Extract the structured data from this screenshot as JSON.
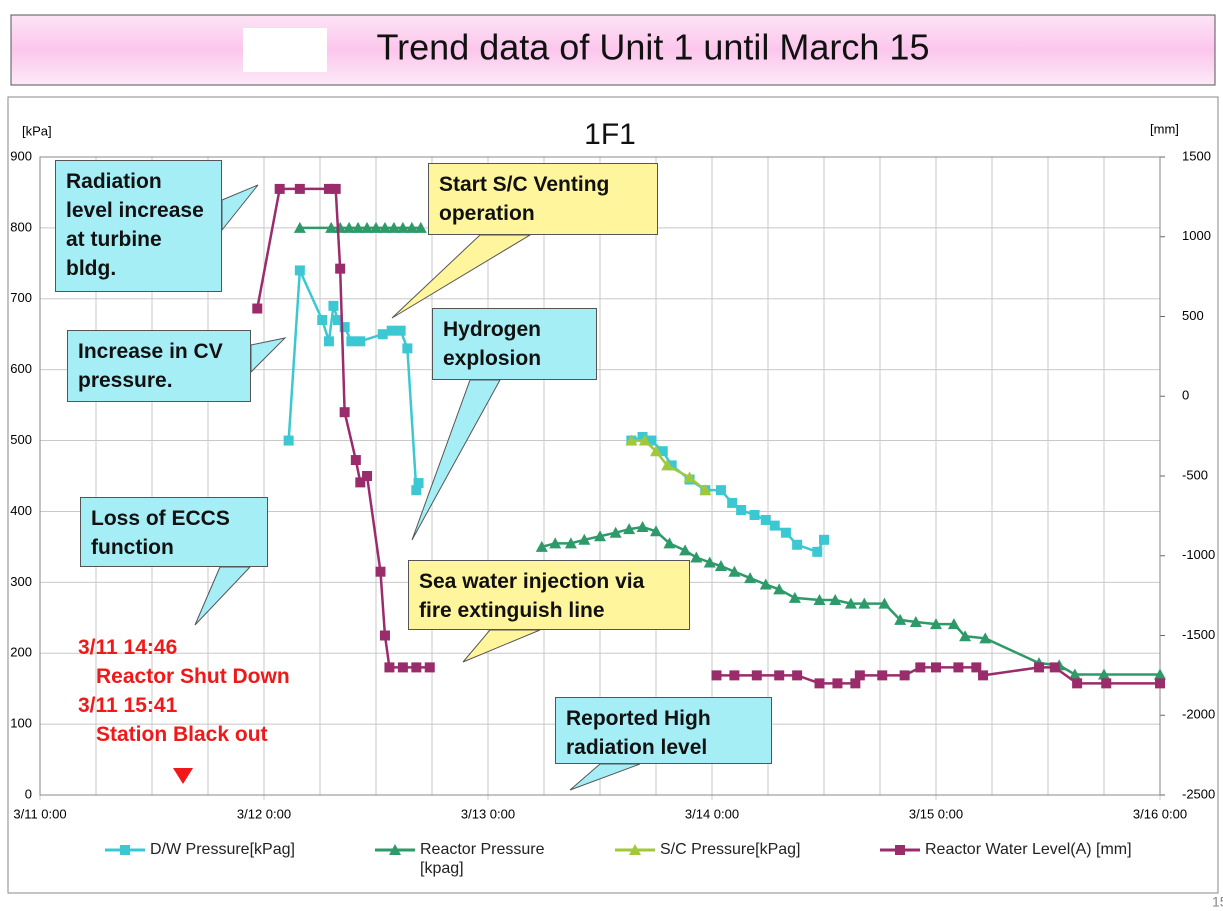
{
  "page_title": "Trend data of Unit 1 until March 15",
  "page_number": "15",
  "chart_data": {
    "type": "line",
    "title": "1F1",
    "y_label": "[kPa]",
    "y2_label": "[mm]",
    "xlim": [
      0,
      5
    ],
    "xticks": [
      {
        "value": 0,
        "label": "3/11 0:00"
      },
      {
        "value": 1,
        "label": "3/12 0:00"
      },
      {
        "value": 2,
        "label": "3/13 0:00"
      },
      {
        "value": 3,
        "label": "3/14 0:00"
      },
      {
        "value": 4,
        "label": "3/15 0:00"
      },
      {
        "value": 5,
        "label": "3/16 0:00"
      }
    ],
    "x_minor_ticks": [
      0.25,
      0.5,
      0.75,
      1.25,
      1.5,
      1.75,
      2.25,
      2.5,
      2.75,
      3.25,
      3.5,
      3.75,
      4.25,
      4.5,
      4.75
    ],
    "ylim": [
      0,
      900
    ],
    "yticks": [
      0,
      100,
      200,
      300,
      400,
      500,
      600,
      700,
      800,
      900
    ],
    "y2lim": [
      -2500,
      1500
    ],
    "y2ticks": [
      -2500,
      -2000,
      -1500,
      -1000,
      -500,
      0,
      500,
      1000,
      1500
    ],
    "grid": true,
    "legend": "bottom",
    "series": [
      {
        "name": "D/W Pressure[kPag]",
        "color": "#3cc8d2",
        "marker": "square",
        "x": [
          1.11,
          1.16,
          1.26,
          1.29,
          1.31,
          1.33,
          1.36,
          1.39,
          1.43,
          1.53,
          1.57,
          1.61,
          1.64,
          1.68,
          1.69,
          null,
          2.64,
          2.69,
          2.73,
          2.78,
          2.82,
          2.9,
          2.97,
          3.04,
          3.09,
          3.13,
          3.19,
          3.24,
          3.28,
          3.33,
          3.38,
          3.47,
          3.5
        ],
        "values": [
          500,
          740,
          670,
          640,
          690,
          670,
          660,
          640,
          640,
          650,
          655,
          655,
          630,
          430,
          440,
          null,
          500,
          505,
          500,
          485,
          465,
          445,
          430,
          430,
          412,
          402,
          395,
          388,
          380,
          370,
          353,
          343,
          360
        ]
      },
      {
        "name": "Reactor Pressure [kpag]",
        "color": "#2e9a6a",
        "marker": "triangle",
        "x": [
          1.16,
          1.3,
          1.34,
          1.38,
          1.42,
          1.46,
          1.5,
          1.54,
          1.58,
          1.62,
          1.66,
          1.7,
          null,
          2.24,
          2.3,
          2.37,
          2.43,
          2.5,
          2.57,
          2.63,
          2.69,
          2.75,
          2.81,
          2.88,
          2.93,
          2.99,
          3.04,
          3.1,
          3.17,
          3.24,
          3.3,
          3.37,
          3.48,
          3.55,
          3.62,
          3.68,
          3.77,
          3.84,
          3.91,
          4.0,
          4.08,
          4.13,
          4.22,
          4.46,
          4.55,
          4.62,
          4.75,
          5.0
        ],
        "values": [
          800,
          800,
          800,
          800,
          800,
          800,
          800,
          800,
          800,
          800,
          800,
          800,
          null,
          350,
          355,
          355,
          360,
          365,
          370,
          375,
          378,
          372,
          355,
          345,
          335,
          328,
          323,
          315,
          306,
          297,
          290,
          278,
          275,
          275,
          270,
          270,
          270,
          247,
          244,
          241,
          241,
          224,
          221,
          186,
          183,
          170,
          170,
          170
        ]
      },
      {
        "name": "S/C Pressure[kPag]",
        "color": "#a2c83a",
        "marker": "triangle",
        "x": [
          2.64,
          2.7,
          2.75,
          2.8,
          2.9,
          2.97
        ],
        "values": [
          500,
          500,
          485,
          465,
          448,
          430
        ]
      },
      {
        "name": "Reactor Water Level(A) [mm]",
        "color": "#9a2c6c",
        "marker": "square",
        "axis": "y2",
        "x": [
          0.97,
          1.07,
          1.16,
          1.29,
          1.32,
          1.34,
          1.36,
          1.41,
          1.43,
          1.46,
          1.52,
          1.54,
          1.56,
          1.62,
          1.68,
          1.74,
          null,
          3.02,
          3.1,
          3.2,
          3.3,
          3.38,
          3.48,
          3.56,
          3.64,
          3.66,
          3.76,
          3.86,
          3.93,
          4.0,
          4.1,
          4.18,
          4.21,
          4.46,
          4.53,
          4.63,
          4.76,
          5.0
        ],
        "values": [
          550,
          1300,
          1300,
          1300,
          1300,
          800,
          -100,
          -400,
          -540,
          -500,
          -1100,
          -1500,
          -1700,
          -1700,
          -1700,
          -1700,
          null,
          -1750,
          -1750,
          -1750,
          -1750,
          -1750,
          -1800,
          -1800,
          -1800,
          -1750,
          -1750,
          -1750,
          -1700,
          -1700,
          -1700,
          -1700,
          -1750,
          -1700,
          -1700,
          -1800,
          -1800,
          -1800
        ]
      }
    ],
    "annotations": [
      {
        "text": "Radiation level increase at turbine bldg.",
        "color": "#a6eef6"
      },
      {
        "text": "Start S/C Venting operation",
        "color": "#fff59c"
      },
      {
        "text": "Increase in CV pressure.",
        "color": "#a6eef6"
      },
      {
        "text": "Hydrogen explosion",
        "color": "#a6eef6"
      },
      {
        "text": "Loss of ECCS function",
        "color": "#a6eef6"
      },
      {
        "text": "Sea water injection via fire extinguish line",
        "color": "#fff59c"
      },
      {
        "text": "Reported High radiation level",
        "color": "#a6eef6"
      }
    ],
    "events": [
      "3/11 14:46",
      "Reactor Shut Down",
      "3/11 15:41",
      "Station Black out"
    ]
  }
}
